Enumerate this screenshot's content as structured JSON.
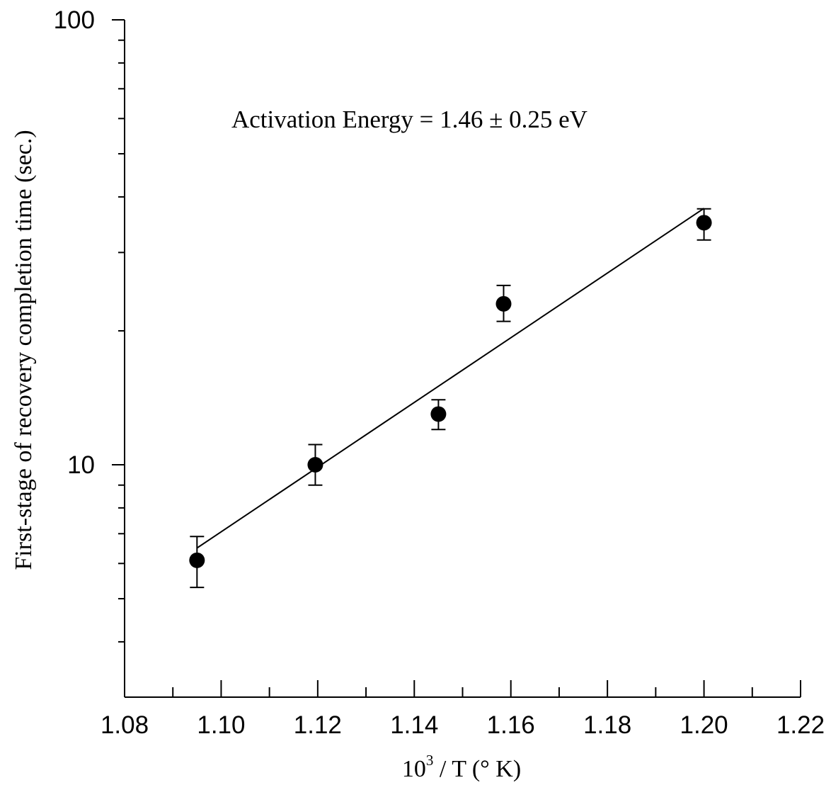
{
  "chart_data": {
    "type": "scatter",
    "annotation": "Activation Energy  = 1.46 ± 0.25 eV",
    "xlabel": "10³ / T (° K)",
    "xlabel_parts": {
      "base": "10",
      "sup": "3",
      "rest": " / T (° K)"
    },
    "ylabel": "First-stage of recovery completion time (sec.)",
    "xlim": [
      1.08,
      1.22
    ],
    "xticks": [
      1.08,
      1.1,
      1.12,
      1.14,
      1.16,
      1.18,
      1.2,
      1.22
    ],
    "xtick_labels": [
      "1.08",
      "1.10",
      "1.12",
      "1.14",
      "1.16",
      "1.18",
      "1.20",
      "1.22"
    ],
    "ylim": [
      3.7,
      100
    ],
    "yscale": "log",
    "yticks": [
      10,
      100
    ],
    "ytick_labels": [
      "10",
      "100"
    ],
    "grid": false,
    "points": [
      {
        "x": 1.095,
        "y": 6.1,
        "err_low": 0.8,
        "err_high": 0.8
      },
      {
        "x": 1.1195,
        "y": 10.0,
        "err_low": 1.0,
        "err_high": 1.1
      },
      {
        "x": 1.145,
        "y": 13.0,
        "err_low": 1.0,
        "err_high": 1.0
      },
      {
        "x": 1.1585,
        "y": 23.0,
        "err_low": 2.0,
        "err_high": 2.3
      },
      {
        "x": 1.2,
        "y": 35.0,
        "err_low": 3.0,
        "err_high": 2.6
      }
    ],
    "fit_line": {
      "x": [
        1.095,
        1.2
      ],
      "y": [
        6.5,
        37.7
      ]
    }
  }
}
